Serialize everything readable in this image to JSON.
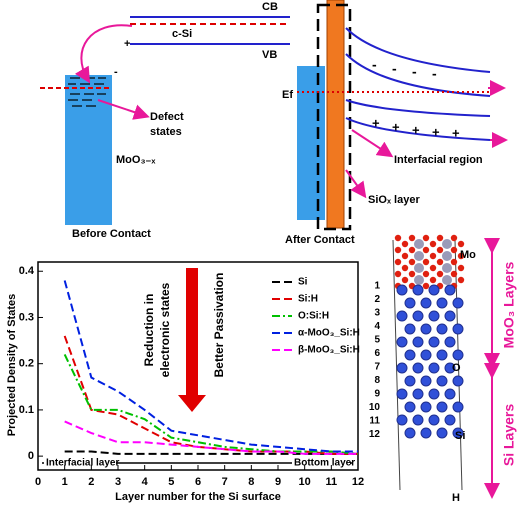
{
  "chart_data": {
    "type": "line",
    "y_label": "Projected Density of States",
    "x_label": "Layer number for the Si surface",
    "x": [
      1,
      2,
      3,
      4,
      5,
      6,
      7,
      8,
      9,
      10,
      11,
      12
    ],
    "series": [
      {
        "name": "Si",
        "color": "#000000",
        "values": [
          0.01,
          0.01,
          0.005,
          0.005,
          0.005,
          0.005,
          0.005,
          0.005,
          0.005,
          0.005,
          0.005,
          0.005
        ]
      },
      {
        "name": "Si:H",
        "color": "#e00000",
        "values": [
          0.26,
          0.1,
          0.09,
          0.06,
          0.03,
          0.02,
          0.015,
          0.01,
          0.01,
          0.01,
          0.005,
          0.005
        ]
      },
      {
        "name": "O:Si:H",
        "color": "#00c000",
        "values": [
          0.22,
          0.1,
          0.1,
          0.08,
          0.04,
          0.03,
          0.02,
          0.015,
          0.01,
          0.01,
          0.01,
          0.005
        ]
      },
      {
        "name": "α-MoO₃_Si:H",
        "color": "#0020e0",
        "values": [
          0.38,
          0.17,
          0.14,
          0.1,
          0.055,
          0.045,
          0.035,
          0.025,
          0.02,
          0.015,
          0.01,
          0.01
        ]
      },
      {
        "name": "β-MoO₃_Si:H",
        "color": "#ff00ff",
        "values": [
          0.075,
          0.05,
          0.03,
          0.03,
          0.025,
          0.02,
          0.015,
          0.01,
          0.01,
          0.005,
          0.005,
          0.005
        ]
      }
    ],
    "xlim": [
      0,
      12
    ],
    "xticks": [
      0,
      1,
      2,
      3,
      4,
      5,
      6,
      7,
      8,
      9,
      10,
      11,
      12
    ],
    "ylim": [
      -0.03,
      0.42
    ],
    "yticks": [
      0,
      0.1,
      0.2,
      0.3,
      0.4
    ],
    "legend": "upper right",
    "annotations": [
      "Reduction in",
      "electronic states",
      "Better Passivation",
      "Interfacial layer",
      "Bottom layer"
    ]
  },
  "diagram": {
    "before": {
      "cb": "CB",
      "csi": "c-Si",
      "vb": "VB",
      "plus": "+",
      "minus": "-",
      "defect_1": "Defect",
      "defect_2": "states",
      "moo3": "MoO₃₋ₓ",
      "caption": "Before Contact"
    },
    "after": {
      "ef": "Ef",
      "interfacial": "Interfacial region",
      "siox": "SiOₓ layer",
      "caption": "After Contact"
    },
    "structure": {
      "mo": "Mo",
      "o": "O",
      "si": "Si",
      "h": "H",
      "moo3_layers": "MoO₃ Layers",
      "si_layers": "Si Layers",
      "layer_numbers": [
        1,
        2,
        3,
        4,
        5,
        6,
        7,
        8,
        9,
        10,
        11,
        12
      ]
    }
  }
}
